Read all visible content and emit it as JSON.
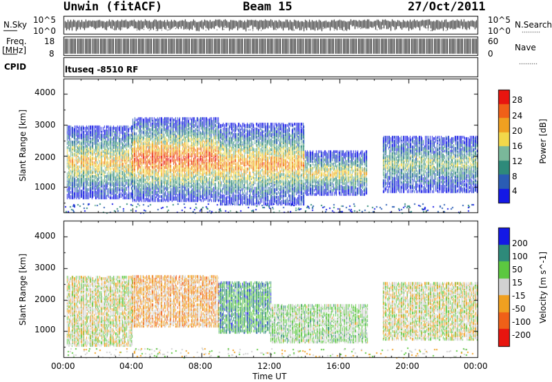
{
  "header": {
    "station": "Unwin (fitACF)",
    "beam": "Beam 15",
    "date": "27/Oct/2011"
  },
  "status_panels": {
    "nsky_label": "N.Sky",
    "nsky_ticks": [
      "10^5",
      "10^0"
    ],
    "nsearch_label": "N.Search",
    "freq_label": "Freq.",
    "freq_unit": "[MHz]",
    "freq_ticks": [
      "18",
      "8"
    ],
    "nave_ticks": [
      "60",
      "0"
    ],
    "nave_label": "Nave",
    "cpid_label": "CPID",
    "cpid_text": "ltuseq -8510 RF"
  },
  "chart_data": [
    {
      "type": "heatmap",
      "name": "power",
      "ylabel": "Slant Range [km]",
      "xlabel": "",
      "ylim": [
        180,
        4500
      ],
      "yticks": [
        "1000",
        "2000",
        "3000",
        "4000"
      ],
      "xticks": [
        "00:00",
        "04:00",
        "08:00",
        "12:00",
        "16:00",
        "20:00",
        "00:00"
      ],
      "x_range_hours": [
        0,
        24
      ],
      "colorbar_label": "Power [dB]",
      "colorbar_ticks": [
        "4",
        "8",
        "12",
        "16",
        "20",
        "24",
        "28"
      ],
      "colorbar_range": [
        0,
        30
      ],
      "colors": [
        "#1418e6",
        "#2a5cb4",
        "#2e8a7a",
        "#7ab89a",
        "#f2d84a",
        "#f0a020",
        "#f06018",
        "#e8150f"
      ],
      "bands": [
        {
          "t_start": 0.2,
          "t_end": 4.0,
          "range_low": 700,
          "range_high": 3000,
          "peak_power": 20
        },
        {
          "t_start": 4.0,
          "t_end": 9.0,
          "range_low": 600,
          "range_high": 3300,
          "peak_power": 26
        },
        {
          "t_start": 9.0,
          "t_end": 14.0,
          "range_low": 500,
          "range_high": 3100,
          "peak_power": 22
        },
        {
          "t_start": 14.0,
          "t_end": 17.6,
          "range_low": 800,
          "range_high": 2200,
          "peak_power": 18
        },
        {
          "t_start": 18.5,
          "t_end": 24.0,
          "range_low": 900,
          "range_high": 2700,
          "peak_power": 14
        }
      ]
    },
    {
      "type": "heatmap",
      "name": "velocity",
      "ylabel": "Slant Range [km]",
      "xlabel": "Time UT",
      "ylim": [
        180,
        4500
      ],
      "yticks": [
        "1000",
        "2000",
        "3000",
        "4000"
      ],
      "xticks": [
        "00:00",
        "04:00",
        "08:00",
        "12:00",
        "16:00",
        "20:00",
        "00:00"
      ],
      "x_range_hours": [
        0,
        24
      ],
      "colorbar_label": "Velocity [m s^-1]",
      "colorbar_ticks": [
        "200",
        "100",
        "50",
        "15",
        "-15",
        "-50",
        "-100",
        "-200"
      ],
      "colorbar_range": [
        -250,
        250
      ],
      "colors": [
        "#e8150f",
        "#f06018",
        "#f0a020",
        "#d2d2d2",
        "#5cc840",
        "#2e8a7a",
        "#1418e6"
      ],
      "bands": [
        {
          "t_start": 0.2,
          "t_end": 4.0,
          "range_low": 600,
          "range_high": 2800,
          "mean_velocity": 0
        },
        {
          "t_start": 4.0,
          "t_end": 9.0,
          "range_low": 1200,
          "range_high": 2800,
          "mean_velocity": -60
        },
        {
          "t_start": 9.0,
          "t_end": 12.0,
          "range_low": 1000,
          "range_high": 2600,
          "mean_velocity": 120
        },
        {
          "t_start": 12.0,
          "t_end": 17.6,
          "range_low": 700,
          "range_high": 1900,
          "mean_velocity": 40
        },
        {
          "t_start": 18.5,
          "t_end": 24.0,
          "range_low": 800,
          "range_high": 2600,
          "mean_velocity": 0
        }
      ]
    }
  ]
}
